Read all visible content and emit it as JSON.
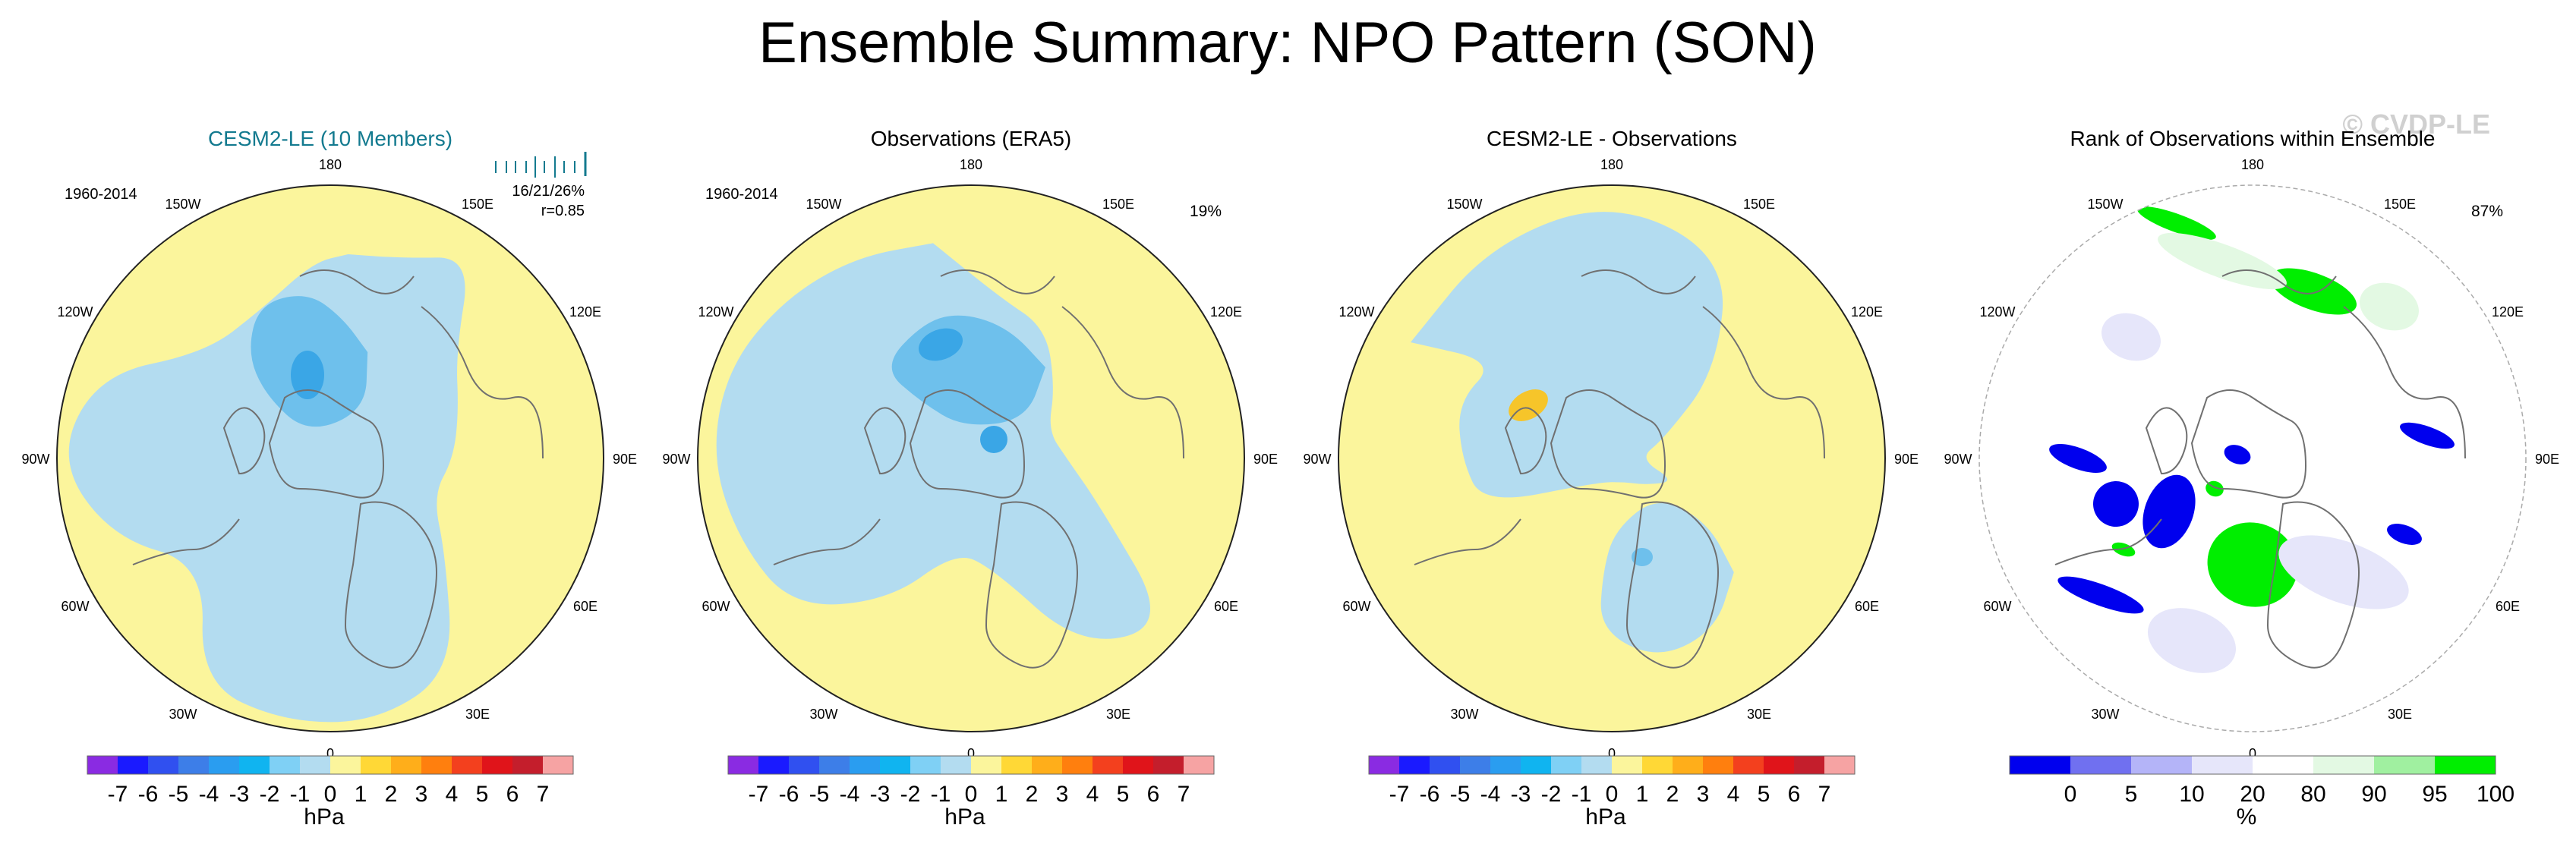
{
  "main_title": "Ensemble Summary: NPO Pattern (SON)",
  "watermark": "© CVDP-LE",
  "colors": {
    "ocean_blue": "#b3dcf0",
    "yellow": "#fbf59c",
    "mid_blue": "#6ec0ec",
    "deep_blue": "#3aa6e6",
    "orange_anom": "#f6c52a",
    "rank_blue": "#0000ee",
    "rank_lavender": "#e6e6fa",
    "rank_green": "#00ee00",
    "rank_lightgreen": "#e3f9e3",
    "coast": "#707070",
    "title_teal": "#137a8f"
  },
  "panels": [
    {
      "title": "CESM2-LE (10 Members)",
      "period": "1960-2014",
      "stats": "16/21/26%",
      "corr": "r=0.85",
      "has_ticks": true,
      "pct": ""
    },
    {
      "title": "Observations (ERA5)",
      "period": "1960-2014",
      "stats": "",
      "corr": "",
      "has_ticks": false,
      "pct": "19%"
    },
    {
      "title": "CESM2-LE - Observations",
      "period": "",
      "stats": "",
      "corr": "",
      "has_ticks": false,
      "pct": ""
    },
    {
      "title": "Rank of Observations within Ensemble",
      "period": "",
      "stats": "",
      "corr": "",
      "has_ticks": false,
      "pct": "87%"
    }
  ],
  "lon_labels": [
    "180",
    "150E",
    "120E",
    "90E",
    "60E",
    "30E",
    "0",
    "30W",
    "60W",
    "90W",
    "120W",
    "150W"
  ],
  "chart_data": [
    {
      "type": "heatmap",
      "panel": "CESM2-LE (10 Members)",
      "projection": "north polar stereographic",
      "colorbar": {
        "units": "hPa",
        "levels": [
          "-7",
          "-6",
          "-5",
          "-4",
          "-3",
          "-2",
          "-1",
          "0",
          "1",
          "2",
          "3",
          "4",
          "5",
          "6",
          "7"
        ],
        "colors": [
          "#8a2be2",
          "#1a1aff",
          "#3050f0",
          "#3d7ee8",
          "#2a9df0",
          "#10b4f0",
          "#7fd0f5",
          "#b3dcf0",
          "#fbf59c",
          "#ffd836",
          "#ffae1a",
          "#ff7f0e",
          "#f3401e",
          "#e0141a",
          "#c41e2c",
          "#f6a3a3"
        ]
      }
    },
    {
      "type": "heatmap",
      "panel": "Observations (ERA5)",
      "projection": "north polar stereographic",
      "colorbar": {
        "units": "hPa",
        "levels": [
          "-7",
          "-6",
          "-5",
          "-4",
          "-3",
          "-2",
          "-1",
          "0",
          "1",
          "2",
          "3",
          "4",
          "5",
          "6",
          "7"
        ],
        "colors": [
          "#8a2be2",
          "#1a1aff",
          "#3050f0",
          "#3d7ee8",
          "#2a9df0",
          "#10b4f0",
          "#7fd0f5",
          "#b3dcf0",
          "#fbf59c",
          "#ffd836",
          "#ffae1a",
          "#ff7f0e",
          "#f3401e",
          "#e0141a",
          "#c41e2c",
          "#f6a3a3"
        ]
      }
    },
    {
      "type": "heatmap",
      "panel": "CESM2-LE - Observations",
      "projection": "north polar stereographic",
      "colorbar": {
        "units": "hPa",
        "levels": [
          "-7",
          "-6",
          "-5",
          "-4",
          "-3",
          "-2",
          "-1",
          "0",
          "1",
          "2",
          "3",
          "4",
          "5",
          "6",
          "7"
        ],
        "colors": [
          "#8a2be2",
          "#1a1aff",
          "#3050f0",
          "#3d7ee8",
          "#2a9df0",
          "#10b4f0",
          "#7fd0f5",
          "#b3dcf0",
          "#fbf59c",
          "#ffd836",
          "#ffae1a",
          "#ff7f0e",
          "#f3401e",
          "#e0141a",
          "#c41e2c",
          "#f6a3a3"
        ]
      }
    },
    {
      "type": "heatmap",
      "panel": "Rank of Observations within Ensemble",
      "projection": "north polar stereographic",
      "colorbar": {
        "units": "%",
        "levels": [
          "0",
          "5",
          "10",
          "20",
          "80",
          "90",
          "95",
          "100"
        ],
        "colors": [
          "#0000ee",
          "#7070f0",
          "#b4b4f8",
          "#e6e6fa",
          "#ffffff",
          "#e3f9e3",
          "#a0f0a0",
          "#00ee00"
        ]
      }
    }
  ]
}
